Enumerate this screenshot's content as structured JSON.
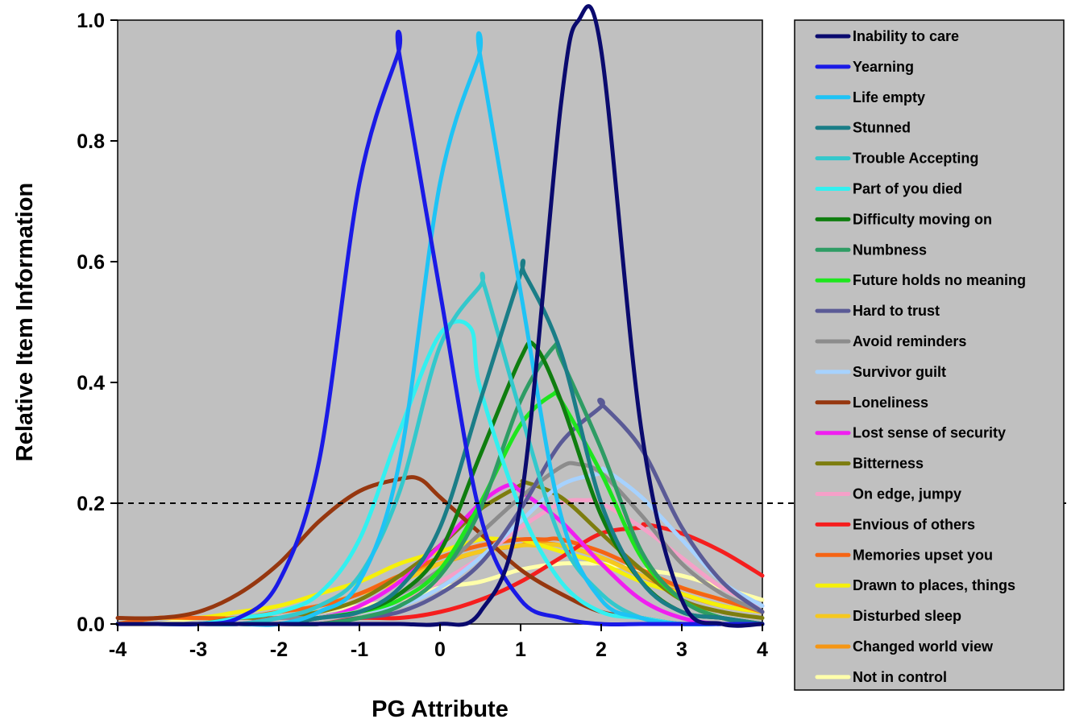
{
  "chart_data": {
    "type": "line",
    "title": "",
    "xlabel": "PG Attribute",
    "ylabel": "Relative Item Information",
    "xlim": [
      -4,
      4
    ],
    "ylim": [
      0,
      1
    ],
    "x_ticks": [
      "-4",
      "-3",
      "-2",
      "-1",
      "0",
      "1",
      "2",
      "3",
      "4"
    ],
    "y_ticks": [
      "0.0",
      "0.2",
      "0.4",
      "0.6",
      "0.8",
      "1.0"
    ],
    "grid": false,
    "background": "#c0c0c0",
    "legend_position": "right",
    "reference_line": {
      "y": 0.2,
      "style": "dashed"
    },
    "x": [
      -4.0,
      -3.5,
      -3.0,
      -2.5,
      -2.0,
      -1.5,
      -1.0,
      -0.5,
      0.0,
      0.5,
      1.0,
      1.5,
      2.0,
      2.5,
      3.0,
      3.5,
      4.0
    ],
    "series": [
      {
        "name": "Inability to care",
        "color": "#0a0a6e",
        "peak": 1.0,
        "location": 1.72,
        "values": [
          0.0,
          0.0,
          0.0,
          0.0,
          0.0,
          0.0,
          0.0,
          0.0,
          0.0,
          0.02,
          0.2,
          0.86,
          0.95,
          0.32,
          0.04,
          0.0,
          0.0
        ]
      },
      {
        "name": "Yearning",
        "color": "#1a1ae6",
        "peak": 0.945,
        "location": -0.52,
        "values": [
          0.0,
          0.0,
          0.0,
          0.01,
          0.07,
          0.27,
          0.73,
          0.94,
          0.55,
          0.18,
          0.04,
          0.01,
          0.0,
          0.0,
          0.0,
          0.0,
          0.0
        ]
      },
      {
        "name": "Life empty",
        "color": "#1ec3f5",
        "peak": 0.94,
        "location": 0.48,
        "values": [
          0.0,
          0.0,
          0.0,
          0.0,
          0.0,
          0.02,
          0.07,
          0.27,
          0.73,
          0.94,
          0.55,
          0.18,
          0.04,
          0.01,
          0.0,
          0.0,
          0.0
        ]
      },
      {
        "name": "Stunned",
        "color": "#1a7d87",
        "peak": 0.58,
        "location": 1.05,
        "values": [
          0.0,
          0.0,
          0.0,
          0.0,
          0.0,
          0.01,
          0.02,
          0.06,
          0.16,
          0.37,
          0.58,
          0.45,
          0.2,
          0.07,
          0.02,
          0.01,
          0.0
        ]
      },
      {
        "name": "Trouble Accepting",
        "color": "#33c8cc",
        "peak": 0.56,
        "location": 0.55,
        "values": [
          0.0,
          0.0,
          0.0,
          0.0,
          0.01,
          0.03,
          0.08,
          0.22,
          0.46,
          0.56,
          0.35,
          0.14,
          0.05,
          0.01,
          0.0,
          0.0,
          0.0
        ]
      },
      {
        "name": "Part of you died",
        "color": "#33f0f0",
        "peak": 0.49,
        "location": 0.38,
        "values": [
          0.0,
          0.0,
          0.0,
          0.01,
          0.02,
          0.05,
          0.14,
          0.32,
          0.48,
          0.39,
          0.19,
          0.07,
          0.02,
          0.01,
          0.0,
          0.0,
          0.0
        ]
      },
      {
        "name": "Difficulty moving on",
        "color": "#0f7d0f",
        "peak": 0.46,
        "location": 1.18,
        "values": [
          0.0,
          0.0,
          0.0,
          0.0,
          0.0,
          0.01,
          0.02,
          0.05,
          0.12,
          0.28,
          0.44,
          0.37,
          0.18,
          0.07,
          0.02,
          0.01,
          0.0
        ]
      },
      {
        "name": "Numbness",
        "color": "#2e9c64",
        "peak": 0.46,
        "location": 1.42,
        "values": [
          0.0,
          0.0,
          0.0,
          0.0,
          0.0,
          0.0,
          0.01,
          0.03,
          0.08,
          0.19,
          0.37,
          0.44,
          0.29,
          0.12,
          0.04,
          0.01,
          0.0
        ]
      },
      {
        "name": "Future holds no meaning",
        "color": "#1ee61e",
        "peak": 0.38,
        "location": 1.4,
        "values": [
          0.0,
          0.0,
          0.0,
          0.0,
          0.0,
          0.01,
          0.02,
          0.04,
          0.09,
          0.2,
          0.33,
          0.37,
          0.25,
          0.11,
          0.04,
          0.01,
          0.0
        ]
      },
      {
        "name": "Hard to trust",
        "color": "#5a5a96",
        "peak": 0.365,
        "location": 2.0,
        "values": [
          0.0,
          0.0,
          0.0,
          0.0,
          0.0,
          0.0,
          0.01,
          0.02,
          0.05,
          0.1,
          0.19,
          0.3,
          0.36,
          0.29,
          0.16,
          0.07,
          0.02
        ]
      },
      {
        "name": "Avoid reminders",
        "color": "#8c8c8c",
        "peak": 0.265,
        "location": 1.7,
        "values": [
          0.0,
          0.0,
          0.0,
          0.0,
          0.01,
          0.01,
          0.02,
          0.05,
          0.09,
          0.15,
          0.21,
          0.26,
          0.25,
          0.18,
          0.1,
          0.05,
          0.02
        ]
      },
      {
        "name": "Survivor guilt",
        "color": "#a6d2ff",
        "peak": 0.255,
        "location": 2.05,
        "values": [
          0.0,
          0.0,
          0.0,
          0.0,
          0.0,
          0.01,
          0.02,
          0.03,
          0.06,
          0.11,
          0.17,
          0.23,
          0.25,
          0.21,
          0.14,
          0.07,
          0.03
        ]
      },
      {
        "name": "Loneliness",
        "color": "#96370f",
        "peak": 0.24,
        "location": -0.25,
        "values": [
          0.01,
          0.01,
          0.02,
          0.05,
          0.1,
          0.17,
          0.22,
          0.24,
          0.21,
          0.15,
          0.09,
          0.05,
          0.02,
          0.01,
          0.0,
          0.0,
          0.0
        ]
      },
      {
        "name": "Lost sense of security",
        "color": "#f01ef0",
        "peak": 0.23,
        "location": 0.85,
        "values": [
          0.0,
          0.0,
          0.0,
          0.0,
          0.01,
          0.01,
          0.03,
          0.07,
          0.13,
          0.2,
          0.22,
          0.17,
          0.1,
          0.04,
          0.01,
          0.0,
          0.0
        ]
      },
      {
        "name": "Bitterness",
        "color": "#7d7d0f",
        "peak": 0.235,
        "location": 1.05,
        "values": [
          0.0,
          0.0,
          0.0,
          0.01,
          0.01,
          0.02,
          0.04,
          0.08,
          0.13,
          0.19,
          0.23,
          0.21,
          0.15,
          0.09,
          0.04,
          0.02,
          0.01
        ]
      },
      {
        "name": "On edge, jumpy",
        "color": "#f5a0c8",
        "peak": 0.205,
        "location": 1.8,
        "values": [
          0.0,
          0.0,
          0.0,
          0.0,
          0.01,
          0.01,
          0.02,
          0.04,
          0.07,
          0.11,
          0.16,
          0.2,
          0.2,
          0.16,
          0.11,
          0.06,
          0.03
        ]
      },
      {
        "name": "Envious of others",
        "color": "#f51e1e",
        "peak": 0.165,
        "location": 2.55,
        "values": [
          0.0,
          0.0,
          0.0,
          0.0,
          0.0,
          0.0,
          0.01,
          0.01,
          0.02,
          0.04,
          0.07,
          0.11,
          0.15,
          0.16,
          0.15,
          0.12,
          0.08
        ]
      },
      {
        "name": "Memories upset you",
        "color": "#f56414",
        "peak": 0.14,
        "location": 1.3,
        "values": [
          0.0,
          0.01,
          0.01,
          0.01,
          0.02,
          0.03,
          0.05,
          0.08,
          0.11,
          0.13,
          0.14,
          0.14,
          0.12,
          0.09,
          0.06,
          0.04,
          0.02
        ]
      },
      {
        "name": "Drawn to places, things",
        "color": "#f5f00a",
        "peak": 0.14,
        "location": 0.8,
        "values": [
          0.0,
          0.01,
          0.01,
          0.02,
          0.03,
          0.05,
          0.07,
          0.1,
          0.12,
          0.14,
          0.14,
          0.12,
          0.1,
          0.07,
          0.05,
          0.03,
          0.02
        ]
      },
      {
        "name": "Disturbed sleep",
        "color": "#f5c81e",
        "peak": 0.13,
        "location": 1.2,
        "values": [
          0.0,
          0.01,
          0.01,
          0.01,
          0.02,
          0.03,
          0.05,
          0.07,
          0.1,
          0.12,
          0.13,
          0.13,
          0.11,
          0.08,
          0.06,
          0.04,
          0.02
        ]
      },
      {
        "name": "Changed world view",
        "color": "#f59614",
        "peak": 0.135,
        "location": 1.1,
        "values": [
          0.0,
          0.01,
          0.01,
          0.01,
          0.02,
          0.03,
          0.05,
          0.08,
          0.1,
          0.12,
          0.13,
          0.13,
          0.11,
          0.08,
          0.05,
          0.03,
          0.02
        ]
      },
      {
        "name": "Not in control",
        "color": "#ffffaa",
        "peak": 0.1,
        "location": 1.9,
        "values": [
          0.0,
          0.0,
          0.01,
          0.01,
          0.01,
          0.02,
          0.03,
          0.04,
          0.06,
          0.07,
          0.09,
          0.1,
          0.1,
          0.09,
          0.08,
          0.06,
          0.04
        ]
      }
    ]
  }
}
